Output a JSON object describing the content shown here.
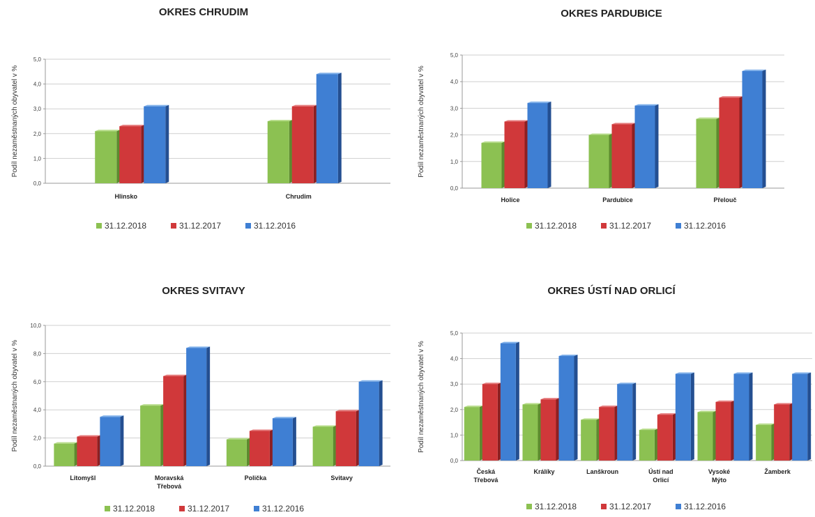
{
  "palette": {
    "front": [
      "#8cc152",
      "#d0383a",
      "#3f7fd3"
    ],
    "side": [
      "#5d8a2e",
      "#8d1f21",
      "#244f91"
    ],
    "top": [
      "#b8dd8c",
      "#e57a7b",
      "#7fb0ea"
    ]
  },
  "chart_data": [
    {
      "type": "bar",
      "title": "OKRES CHRUDIM",
      "ylabel": "Podíl nezaměstnaných obyvatel v %",
      "ylim": [
        0,
        5
      ],
      "yticks": [
        "0,0",
        "1,0",
        "2,0",
        "3,0",
        "4,0",
        "5,0"
      ],
      "grid": true,
      "legend_position": "bottom",
      "categories": [
        [
          "Hlinsko"
        ],
        [
          "Chrudim"
        ]
      ],
      "series": [
        {
          "name": "31.12.2018",
          "values": [
            2.1,
            2.5
          ]
        },
        {
          "name": "31.12.2017",
          "values": [
            2.3,
            3.1
          ]
        },
        {
          "name": "31.12.2016",
          "values": [
            3.1,
            4.4
          ]
        }
      ]
    },
    {
      "type": "bar",
      "title": "OKRES PARDUBICE",
      "ylabel": "Podíl nezaměstnaných obyvatel v %",
      "ylim": [
        0,
        5
      ],
      "yticks": [
        "0,0",
        "1,0",
        "2,0",
        "3,0",
        "4,0",
        "5,0"
      ],
      "grid": true,
      "legend_position": "bottom",
      "categories": [
        [
          "Holice"
        ],
        [
          "Pardubice"
        ],
        [
          "Přelouč"
        ]
      ],
      "series": [
        {
          "name": "31.12.2018",
          "values": [
            1.7,
            2.0,
            2.6
          ]
        },
        {
          "name": "31.12.2017",
          "values": [
            2.5,
            2.4,
            3.4
          ]
        },
        {
          "name": "31.12.2016",
          "values": [
            3.2,
            3.1,
            4.4
          ]
        }
      ]
    },
    {
      "type": "bar",
      "title": "OKRES SVITAVY",
      "ylabel": "Podíl nezaměstnaných obyvatel v %",
      "ylim": [
        0,
        10
      ],
      "yticks": [
        "0,0",
        "2,0",
        "4,0",
        "6,0",
        "8,0",
        "10,0"
      ],
      "grid": true,
      "legend_position": "bottom",
      "categories": [
        [
          "Litomyšl"
        ],
        [
          "Moravská",
          "Třebová"
        ],
        [
          "Polička"
        ],
        [
          "Svitavy"
        ]
      ],
      "series": [
        {
          "name": "31.12.2018",
          "values": [
            1.6,
            4.3,
            1.9,
            2.8
          ]
        },
        {
          "name": "31.12.2017",
          "values": [
            2.1,
            6.4,
            2.5,
            3.9
          ]
        },
        {
          "name": "31.12.2016",
          "values": [
            3.5,
            8.4,
            3.4,
            6.0
          ]
        }
      ]
    },
    {
      "type": "bar",
      "title": "OKRES ÚSTÍ NAD ORLICÍ",
      "ylabel": "Podíl nezaměstnaných obyvatel v %",
      "ylim": [
        0,
        5
      ],
      "yticks": [
        "0,0",
        "1,0",
        "2,0",
        "3,0",
        "4,0",
        "5,0"
      ],
      "grid": true,
      "legend_position": "bottom",
      "categories": [
        [
          "Česká",
          "Třebová"
        ],
        [
          "Králíky"
        ],
        [
          "Lanškroun"
        ],
        [
          "Ústí nad",
          "Orlicí"
        ],
        [
          "Vysoké",
          "Mýto"
        ],
        [
          "Žamberk"
        ]
      ],
      "series": [
        {
          "name": "31.12.2018",
          "values": [
            2.1,
            2.2,
            1.6,
            1.2,
            1.9,
            1.4
          ]
        },
        {
          "name": "31.12.2017",
          "values": [
            3.0,
            2.4,
            2.1,
            1.8,
            2.3,
            2.2
          ]
        },
        {
          "name": "31.12.2016",
          "values": [
            4.6,
            4.1,
            3.0,
            3.4,
            3.4,
            3.4
          ]
        }
      ]
    }
  ]
}
